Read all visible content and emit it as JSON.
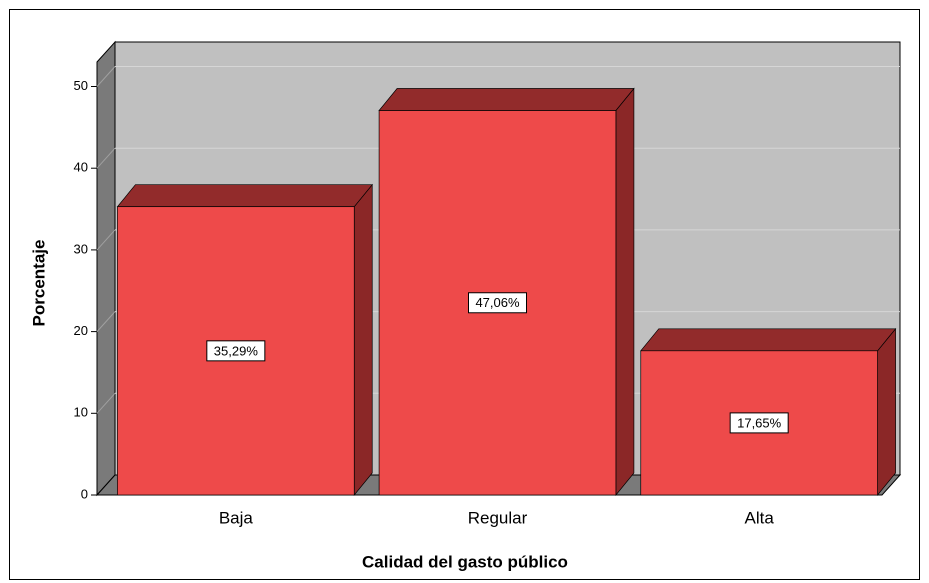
{
  "chart_data": {
    "type": "bar3d",
    "categories": [
      "Baja",
      "Regular",
      "Alta"
    ],
    "values": [
      35.29,
      47.06,
      17.65
    ],
    "value_labels": [
      "35,29%",
      "47,06%",
      "17,65%"
    ],
    "color": "#ee4a4a",
    "ylim": [
      0,
      53
    ],
    "yticks": [
      0,
      10,
      20,
      30,
      40,
      50
    ],
    "xlabel": "Calidad del gasto público",
    "ylabel": "Porcentaje",
    "grid": true
  }
}
